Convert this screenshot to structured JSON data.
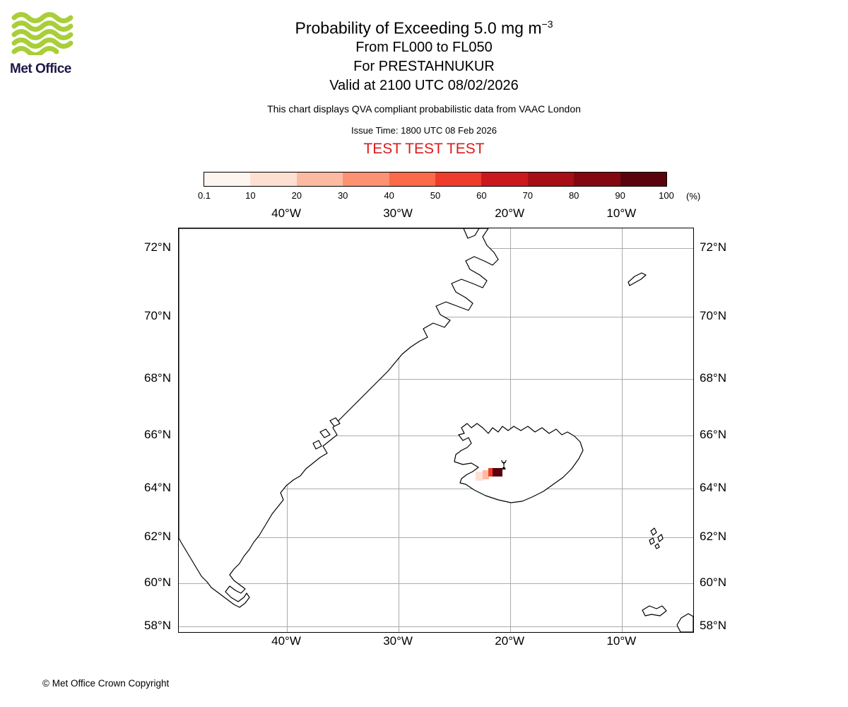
{
  "logo": {
    "text": "Met Office"
  },
  "header": {
    "title_prefix": "Probability of Exceeding 5.0 mg m",
    "title_sup": "−3",
    "line2": "From FL000 to FL050",
    "line3": "For PRESTAHNUKUR",
    "line4": "Valid at 2100 UTC 08/02/2026",
    "qva_note": "This chart displays QVA compliant probabilistic data from VAAC London",
    "issue_time": "Issue Time: 1800 UTC 08 Feb 2026",
    "test_text": "TEST TEST TEST",
    "test_color": "#db1a1a"
  },
  "colorbar": {
    "ticks": [
      "0.1",
      "10",
      "20",
      "30",
      "40",
      "50",
      "60",
      "70",
      "80",
      "90",
      "100"
    ],
    "unit": "(%)",
    "colors": [
      "#fff5f0",
      "#fee0d2",
      "#fcbba1",
      "#fc9272",
      "#fb6a4a",
      "#ef3b2c",
      "#cb181d",
      "#a50f15",
      "#820711",
      "#5a030c"
    ]
  },
  "map": {
    "lon_ticks": [
      {
        "label": "40°W",
        "lon": -40
      },
      {
        "label": "30°W",
        "lon": -30
      },
      {
        "label": "20°W",
        "lon": -20
      },
      {
        "label": "10°W",
        "lon": -10
      }
    ],
    "lat_ticks": [
      {
        "label": "72°N",
        "lat": 72
      },
      {
        "label": "70°N",
        "lat": 70
      },
      {
        "label": "68°N",
        "lat": 68
      },
      {
        "label": "66°N",
        "lat": 66
      },
      {
        "label": "64°N",
        "lat": 64
      },
      {
        "label": "62°N",
        "lat": 62
      },
      {
        "label": "60°N",
        "lat": 60
      },
      {
        "label": "58°N",
        "lat": 58
      }
    ]
  },
  "footer": {
    "copyright": "© Met Office Crown Copyright"
  },
  "chart_data": {
    "type": "heatmap",
    "title": "Probability of Exceeding 5.0 mg m-3",
    "subtitle": "From FL000 to FL050, For PRESTAHNUKUR",
    "valid_time": "2100 UTC 08/02/2026",
    "issue_time": "1800 UTC 08 Feb 2026",
    "source": "VAAC London",
    "status": "TEST",
    "unit": "%",
    "legend_position": "top",
    "grid": true,
    "projection": "mercator",
    "map_extent": {
      "lon_min": -49.7,
      "lon_max": -3.6,
      "lat_min": 57.7,
      "lat_max": 72.5
    },
    "lon_gridlines_deg": [
      -40,
      -30,
      -20,
      -10
    ],
    "lat_gridlines_deg": [
      72,
      70,
      68,
      66,
      64,
      62,
      60,
      58
    ],
    "probability_bins_percent": [
      0.1,
      10,
      20,
      30,
      40,
      50,
      60,
      70,
      80,
      90,
      100
    ],
    "volcano": {
      "name": "PRESTAHNUKUR",
      "lat": 64.75,
      "lon": -20.6,
      "marker": "eruption-symbol"
    },
    "cells": [
      {
        "lon_min": -23.1,
        "lon_max": -22.4,
        "lat_min": 64.3,
        "lat_max": 64.65,
        "probability_percent": 15
      },
      {
        "lon_min": -22.5,
        "lon_max": -21.9,
        "lat_min": 64.35,
        "lat_max": 64.7,
        "probability_percent": 25
      },
      {
        "lon_min": -22.0,
        "lon_max": -21.4,
        "lat_min": 64.45,
        "lat_max": 64.8,
        "probability_percent": 55
      },
      {
        "lon_min": -21.6,
        "lon_max": -20.7,
        "lat_min": 64.45,
        "lat_max": 64.8,
        "probability_percent": 95
      }
    ]
  }
}
